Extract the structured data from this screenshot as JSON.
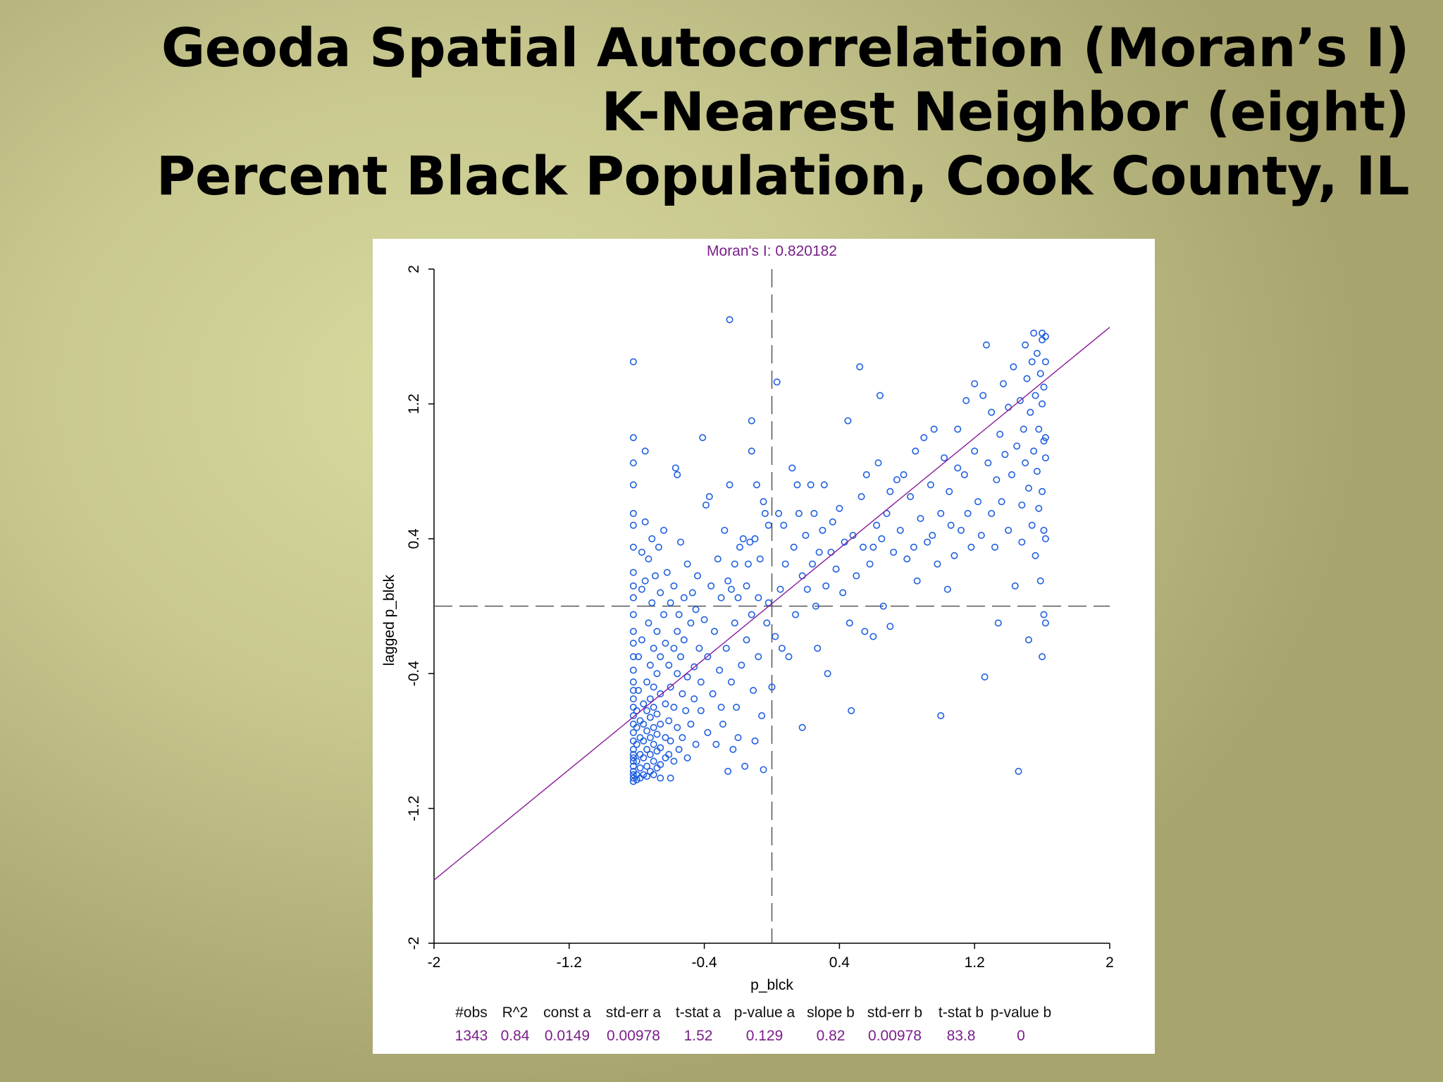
{
  "slide": {
    "title_lines": [
      "Geoda Spatial Autocorrelation (Moran’s I)",
      "K-Nearest Neighbor (eight)",
      "Percent Black Population, Cook County, IL"
    ]
  },
  "chart_data": {
    "type": "scatter",
    "title": "Moran's I: 0.820182",
    "xlabel": "p_blck",
    "ylabel": "lagged p_blck",
    "xlim": [
      -2,
      2
    ],
    "ylim": [
      -2,
      2
    ],
    "x_ticks": [
      "-2",
      "-1.2",
      "-0.4",
      "0.4",
      "1.2",
      "2"
    ],
    "y_ticks": [
      "-2",
      "-1.2",
      "-0.4",
      "0.4",
      "1.2",
      "2"
    ],
    "regression_line": {
      "intercept": 0.0149,
      "slope": 0.82
    },
    "reference_lines": {
      "x": 0,
      "y": 0
    },
    "colors": {
      "points": "#1f5fe0",
      "regression": "#8b1a9b",
      "title": "#7a1f8a",
      "stats_values": "#7a1f8a",
      "axes": "#000000"
    },
    "points": [
      [
        -0.82,
        1.45
      ],
      [
        -0.82,
        1.0
      ],
      [
        -0.82,
        0.85
      ],
      [
        -0.82,
        0.72
      ],
      [
        -0.82,
        0.55
      ],
      [
        -0.82,
        0.48
      ],
      [
        -0.82,
        0.35
      ],
      [
        -0.82,
        0.2
      ],
      [
        -0.82,
        0.12
      ],
      [
        -0.82,
        0.05
      ],
      [
        -0.82,
        -0.05
      ],
      [
        -0.82,
        -0.15
      ],
      [
        -0.82,
        -0.22
      ],
      [
        -0.82,
        -0.3
      ],
      [
        -0.82,
        -0.38
      ],
      [
        -0.82,
        -0.45
      ],
      [
        -0.82,
        -0.5
      ],
      [
        -0.82,
        -0.55
      ],
      [
        -0.82,
        -0.6
      ],
      [
        -0.82,
        -0.65
      ],
      [
        -0.82,
        -0.7
      ],
      [
        -0.82,
        -0.75
      ],
      [
        -0.82,
        -0.8
      ],
      [
        -0.82,
        -0.85
      ],
      [
        -0.82,
        -0.88
      ],
      [
        -0.82,
        -0.9
      ],
      [
        -0.82,
        -0.92
      ],
      [
        -0.82,
        -0.95
      ],
      [
        -0.82,
        -0.98
      ],
      [
        -0.82,
        -1.0
      ],
      [
        -0.82,
        -1.02
      ],
      [
        -0.82,
        -1.04
      ],
      [
        -0.8,
        -0.62
      ],
      [
        -0.8,
        -0.72
      ],
      [
        -0.8,
        -0.82
      ],
      [
        -0.8,
        -0.92
      ],
      [
        -0.8,
        -1.0
      ],
      [
        -0.8,
        -1.03
      ],
      [
        -0.79,
        -0.5
      ],
      [
        -0.79,
        -0.3
      ],
      [
        -0.78,
        -0.68
      ],
      [
        -0.78,
        -0.78
      ],
      [
        -0.78,
        -0.88
      ],
      [
        -0.78,
        -0.96
      ],
      [
        -0.78,
        -1.02
      ],
      [
        -0.77,
        0.32
      ],
      [
        -0.77,
        0.1
      ],
      [
        -0.77,
        -0.2
      ],
      [
        -0.76,
        -0.58
      ],
      [
        -0.76,
        -0.7
      ],
      [
        -0.76,
        -0.8
      ],
      [
        -0.76,
        -0.9
      ],
      [
        -0.76,
        -1.0
      ],
      [
        -0.75,
        0.92
      ],
      [
        -0.75,
        0.5
      ],
      [
        -0.75,
        0.15
      ],
      [
        -0.74,
        -0.45
      ],
      [
        -0.74,
        -0.62
      ],
      [
        -0.74,
        -0.74
      ],
      [
        -0.74,
        -0.85
      ],
      [
        -0.74,
        -0.95
      ],
      [
        -0.74,
        -1.01
      ],
      [
        -0.73,
        0.28
      ],
      [
        -0.73,
        -0.1
      ],
      [
        -0.72,
        -0.35
      ],
      [
        -0.72,
        -0.55
      ],
      [
        -0.72,
        -0.66
      ],
      [
        -0.72,
        -0.78
      ],
      [
        -0.72,
        -0.88
      ],
      [
        -0.72,
        -0.98
      ],
      [
        -0.71,
        0.4
      ],
      [
        -0.71,
        0.02
      ],
      [
        -0.7,
        -0.25
      ],
      [
        -0.7,
        -0.48
      ],
      [
        -0.7,
        -0.6
      ],
      [
        -0.7,
        -0.72
      ],
      [
        -0.7,
        -0.82
      ],
      [
        -0.7,
        -0.92
      ],
      [
        -0.7,
        -1.0
      ],
      [
        -0.69,
        0.18
      ],
      [
        -0.68,
        -0.15
      ],
      [
        -0.68,
        -0.4
      ],
      [
        -0.68,
        -0.64
      ],
      [
        -0.68,
        -0.76
      ],
      [
        -0.68,
        -0.86
      ],
      [
        -0.68,
        -0.96
      ],
      [
        -0.67,
        0.35
      ],
      [
        -0.66,
        0.08
      ],
      [
        -0.66,
        -0.3
      ],
      [
        -0.66,
        -0.52
      ],
      [
        -0.66,
        -0.7
      ],
      [
        -0.66,
        -0.84
      ],
      [
        -0.66,
        -0.94
      ],
      [
        -0.66,
        -1.02
      ],
      [
        -0.64,
        0.45
      ],
      [
        -0.64,
        -0.05
      ],
      [
        -0.63,
        -0.22
      ],
      [
        -0.63,
        -0.58
      ],
      [
        -0.63,
        -0.78
      ],
      [
        -0.63,
        -0.9
      ],
      [
        -0.62,
        0.2
      ],
      [
        -0.61,
        -0.35
      ],
      [
        -0.61,
        -0.68
      ],
      [
        -0.61,
        -0.88
      ],
      [
        -0.6,
        0.02
      ],
      [
        -0.6,
        -0.48
      ],
      [
        -0.6,
        -0.8
      ],
      [
        -0.6,
        -1.02
      ],
      [
        -0.58,
        0.12
      ],
      [
        -0.58,
        -0.25
      ],
      [
        -0.58,
        -0.6
      ],
      [
        -0.58,
        -0.92
      ],
      [
        -0.57,
        0.82
      ],
      [
        -0.56,
        0.78
      ],
      [
        -0.56,
        -0.15
      ],
      [
        -0.56,
        -0.4
      ],
      [
        -0.56,
        -0.72
      ],
      [
        -0.55,
        -0.05
      ],
      [
        -0.55,
        -0.85
      ],
      [
        -0.54,
        0.38
      ],
      [
        -0.54,
        -0.3
      ],
      [
        -0.53,
        -0.52
      ],
      [
        -0.53,
        -0.78
      ],
      [
        -0.52,
        0.05
      ],
      [
        -0.52,
        -0.2
      ],
      [
        -0.51,
        -0.62
      ],
      [
        -0.5,
        0.25
      ],
      [
        -0.5,
        -0.42
      ],
      [
        -0.5,
        -0.9
      ],
      [
        -0.48,
        -0.1
      ],
      [
        -0.48,
        -0.7
      ],
      [
        -0.47,
        0.08
      ],
      [
        -0.46,
        -0.36
      ],
      [
        -0.46,
        -0.55
      ],
      [
        -0.45,
        -0.02
      ],
      [
        -0.45,
        -0.82
      ],
      [
        -0.44,
        0.18
      ],
      [
        -0.43,
        -0.25
      ],
      [
        -0.42,
        -0.45
      ],
      [
        -0.42,
        -0.62
      ],
      [
        -0.41,
        1.0
      ],
      [
        -0.4,
        -0.08
      ],
      [
        -0.39,
        0.6
      ],
      [
        -0.38,
        -0.3
      ],
      [
        -0.38,
        -0.75
      ],
      [
        -0.37,
        0.65
      ],
      [
        -0.36,
        0.12
      ],
      [
        -0.35,
        -0.52
      ],
      [
        -0.34,
        -0.15
      ],
      [
        -0.33,
        -0.82
      ],
      [
        -0.32,
        0.28
      ],
      [
        -0.31,
        -0.38
      ],
      [
        -0.3,
        0.05
      ],
      [
        -0.3,
        -0.6
      ],
      [
        -0.29,
        -0.7
      ],
      [
        -0.28,
        0.45
      ],
      [
        -0.27,
        -0.25
      ],
      [
        -0.26,
        0.15
      ],
      [
        -0.26,
        -0.98
      ],
      [
        -0.25,
        1.7
      ],
      [
        -0.25,
        0.72
      ],
      [
        -0.24,
        0.1
      ],
      [
        -0.24,
        -0.45
      ],
      [
        -0.23,
        -0.85
      ],
      [
        -0.22,
        0.25
      ],
      [
        -0.22,
        -0.1
      ],
      [
        -0.21,
        -0.6
      ],
      [
        -0.2,
        0.05
      ],
      [
        -0.2,
        -0.78
      ],
      [
        -0.19,
        0.35
      ],
      [
        -0.18,
        -0.35
      ],
      [
        -0.17,
        0.4
      ],
      [
        -0.16,
        -0.95
      ],
      [
        -0.15,
        0.12
      ],
      [
        -0.15,
        -0.2
      ],
      [
        -0.14,
        0.25
      ],
      [
        -0.13,
        0.38
      ],
      [
        -0.12,
        1.1
      ],
      [
        -0.12,
        0.92
      ],
      [
        -0.12,
        -0.05
      ],
      [
        -0.11,
        -0.5
      ],
      [
        -0.1,
        0.4
      ],
      [
        -0.1,
        -0.8
      ],
      [
        -0.09,
        0.72
      ],
      [
        -0.08,
        0.05
      ],
      [
        -0.08,
        -0.3
      ],
      [
        -0.07,
        0.28
      ],
      [
        -0.06,
        -0.65
      ],
      [
        -0.05,
        0.62
      ],
      [
        -0.05,
        -0.97
      ],
      [
        -0.04,
        0.55
      ],
      [
        -0.03,
        -0.1
      ],
      [
        -0.02,
        0.02
      ],
      [
        -0.02,
        0.48
      ],
      [
        0.0,
        -0.48
      ],
      [
        0.02,
        -0.18
      ],
      [
        0.03,
        1.33
      ],
      [
        0.04,
        0.55
      ],
      [
        0.05,
        0.1
      ],
      [
        0.06,
        -0.25
      ],
      [
        0.07,
        0.48
      ],
      [
        0.08,
        0.25
      ],
      [
        0.1,
        -0.3
      ],
      [
        0.12,
        0.82
      ],
      [
        0.13,
        0.35
      ],
      [
        0.14,
        -0.05
      ],
      [
        0.15,
        0.72
      ],
      [
        0.16,
        0.55
      ],
      [
        0.18,
        0.18
      ],
      [
        0.18,
        -0.72
      ],
      [
        0.2,
        0.42
      ],
      [
        0.21,
        0.1
      ],
      [
        0.23,
        0.72
      ],
      [
        0.24,
        0.25
      ],
      [
        0.25,
        0.55
      ],
      [
        0.26,
        0.0
      ],
      [
        0.27,
        -0.25
      ],
      [
        0.28,
        0.32
      ],
      [
        0.3,
        0.45
      ],
      [
        0.31,
        0.72
      ],
      [
        0.32,
        0.12
      ],
      [
        0.33,
        -0.4
      ],
      [
        0.35,
        0.32
      ],
      [
        0.36,
        0.5
      ],
      [
        0.38,
        0.22
      ],
      [
        0.4,
        0.58
      ],
      [
        0.42,
        0.08
      ],
      [
        0.43,
        0.38
      ],
      [
        0.45,
        1.1
      ],
      [
        0.46,
        -0.1
      ],
      [
        0.47,
        -0.62
      ],
      [
        0.48,
        0.42
      ],
      [
        0.5,
        0.18
      ],
      [
        0.52,
        1.42
      ],
      [
        0.53,
        0.65
      ],
      [
        0.54,
        0.35
      ],
      [
        0.55,
        -0.15
      ],
      [
        0.56,
        0.78
      ],
      [
        0.58,
        0.25
      ],
      [
        0.6,
        0.35
      ],
      [
        0.6,
        -0.18
      ],
      [
        0.62,
        0.48
      ],
      [
        0.63,
        0.85
      ],
      [
        0.64,
        1.25
      ],
      [
        0.65,
        0.4
      ],
      [
        0.66,
        0.0
      ],
      [
        0.68,
        0.55
      ],
      [
        0.7,
        -0.12
      ],
      [
        0.7,
        0.68
      ],
      [
        0.72,
        0.32
      ],
      [
        0.74,
        0.75
      ],
      [
        0.76,
        0.45
      ],
      [
        0.78,
        0.78
      ],
      [
        0.8,
        0.28
      ],
      [
        0.82,
        0.65
      ],
      [
        0.84,
        0.35
      ],
      [
        0.85,
        0.92
      ],
      [
        0.86,
        0.15
      ],
      [
        0.88,
        0.52
      ],
      [
        0.9,
        1.0
      ],
      [
        0.92,
        0.38
      ],
      [
        0.94,
        0.72
      ],
      [
        0.95,
        0.42
      ],
      [
        0.96,
        1.05
      ],
      [
        0.98,
        0.25
      ],
      [
        1.0,
        -0.65
      ],
      [
        1.0,
        0.55
      ],
      [
        1.02,
        0.88
      ],
      [
        1.04,
        0.1
      ],
      [
        1.05,
        0.68
      ],
      [
        1.06,
        0.48
      ],
      [
        1.08,
        0.3
      ],
      [
        1.1,
        0.82
      ],
      [
        1.1,
        1.05
      ],
      [
        1.12,
        0.45
      ],
      [
        1.14,
        0.78
      ],
      [
        1.15,
        1.22
      ],
      [
        1.16,
        0.55
      ],
      [
        1.18,
        0.35
      ],
      [
        1.2,
        0.92
      ],
      [
        1.2,
        1.32
      ],
      [
        1.22,
        0.62
      ],
      [
        1.24,
        0.42
      ],
      [
        1.25,
        1.25
      ],
      [
        1.26,
        -0.42
      ],
      [
        1.27,
        1.55
      ],
      [
        1.28,
        0.85
      ],
      [
        1.3,
        0.55
      ],
      [
        1.3,
        1.15
      ],
      [
        1.32,
        0.35
      ],
      [
        1.33,
        0.75
      ],
      [
        1.34,
        -0.1
      ],
      [
        1.35,
        1.02
      ],
      [
        1.36,
        0.62
      ],
      [
        1.37,
        1.32
      ],
      [
        1.38,
        0.9
      ],
      [
        1.4,
        0.45
      ],
      [
        1.4,
        1.18
      ],
      [
        1.42,
        0.78
      ],
      [
        1.43,
        1.42
      ],
      [
        1.44,
        0.12
      ],
      [
        1.45,
        0.95
      ],
      [
        1.46,
        -0.98
      ],
      [
        1.47,
        1.22
      ],
      [
        1.48,
        0.6
      ],
      [
        1.48,
        0.38
      ],
      [
        1.49,
        1.05
      ],
      [
        1.5,
        1.55
      ],
      [
        1.5,
        0.85
      ],
      [
        1.51,
        1.35
      ],
      [
        1.52,
        0.7
      ],
      [
        1.52,
        -0.2
      ],
      [
        1.53,
        1.15
      ],
      [
        1.54,
        1.45
      ],
      [
        1.54,
        0.48
      ],
      [
        1.55,
        0.92
      ],
      [
        1.55,
        1.62
      ],
      [
        1.56,
        1.25
      ],
      [
        1.56,
        0.3
      ],
      [
        1.57,
        0.8
      ],
      [
        1.57,
        1.5
      ],
      [
        1.58,
        1.05
      ],
      [
        1.58,
        0.58
      ],
      [
        1.59,
        1.38
      ],
      [
        1.59,
        0.15
      ],
      [
        1.6,
        1.2
      ],
      [
        1.6,
        0.68
      ],
      [
        1.6,
        -0.3
      ],
      [
        1.6,
        1.58
      ],
      [
        1.6,
        1.62
      ],
      [
        1.61,
        0.45
      ],
      [
        1.61,
        0.98
      ],
      [
        1.61,
        1.3
      ],
      [
        1.61,
        -0.05
      ],
      [
        1.62,
        1.6
      ],
      [
        1.62,
        0.88
      ],
      [
        1.62,
        0.4
      ],
      [
        1.62,
        -0.1
      ],
      [
        1.62,
        1.45
      ],
      [
        1.62,
        1.0
      ]
    ],
    "stats": {
      "headers": [
        "#obs",
        "R^2",
        "const a",
        "std-err a",
        "t-stat a",
        "p-value a",
        "slope b",
        "std-err b",
        "t-stat b",
        "p-value b"
      ],
      "values": [
        "1343",
        "0.84",
        "0.0149",
        "0.00978",
        "1.52",
        "0.129",
        "0.82",
        "0.00978",
        "83.8",
        "0"
      ]
    }
  }
}
